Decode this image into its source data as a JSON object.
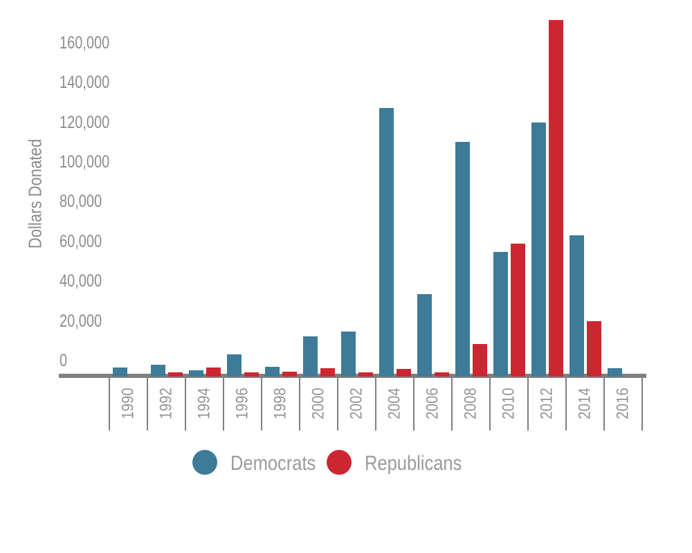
{
  "chart_data": {
    "type": "bar",
    "title": "",
    "xlabel": "",
    "ylabel": "Dollars Donated",
    "categories": [
      "1990",
      "1992",
      "1994",
      "1996",
      "1998",
      "2000",
      "2002",
      "2004",
      "2006",
      "2008",
      "2010",
      "2012",
      "2014",
      "2016"
    ],
    "series": [
      {
        "name": "Democrats",
        "color": "#3d7b99",
        "values": [
          3400,
          5000,
          2000,
          10000,
          4000,
          19000,
          21500,
          134000,
          40500,
          117000,
          61500,
          127000,
          70000,
          3000
        ]
      },
      {
        "name": "Republicans",
        "color": "#cd2633",
        "values": [
          0,
          1000,
          3500,
          1000,
          1400,
          3000,
          1200,
          2700,
          1200,
          15500,
          66000,
          178500,
          27000,
          0
        ]
      }
    ],
    "ylim": [
      0,
      180000
    ],
    "ytick_step": 20000,
    "ytick_labels": [
      "0",
      "20,000",
      "40,000",
      "60,000",
      "80,000",
      "100,000",
      "120,000",
      "140,000",
      "160,000"
    ],
    "grid": false,
    "legend_position": "bottom",
    "axis_color": "#7f7f7f",
    "tick_label_color": "#8c8c8c"
  }
}
